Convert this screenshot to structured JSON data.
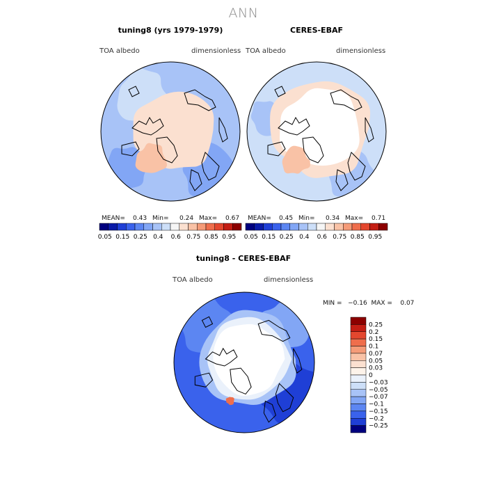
{
  "figure_title": "ANN",
  "panels": [
    {
      "title": "tuning8 (yrs 1979-1979)",
      "variable_label": "TOA albedo",
      "units_label": "dimensionless",
      "mean_label": "MEAN=",
      "mean": "0.43",
      "min_label": "Min=",
      "min": "0.24",
      "max_label": "Max=",
      "max": "0.67"
    },
    {
      "title": "CERES-EBAF",
      "variable_label": "TOA albedo",
      "units_label": "dimensionless",
      "mean_label": "MEAN=",
      "mean": "0.45",
      "min_label": "Min=",
      "min": "0.34",
      "max_label": "Max=",
      "max": "0.71"
    },
    {
      "title": "tuning8 - CERES-EBAF",
      "variable_label": "TOA albedo",
      "units_label": "dimensionless",
      "minmax_text": "MIN =   −0.16  MAX =    0.07"
    }
  ],
  "chart_data": [
    {
      "type": "heatmap",
      "projection": "north polar stereographic",
      "title": "tuning8 (yrs 1979-1979)",
      "colorbar_orientation": "horizontal",
      "colorbar_levels": [
        0.05,
        0.1,
        0.15,
        0.2,
        0.25,
        0.3,
        0.35,
        0.4,
        0.5,
        0.6,
        0.65,
        0.75,
        0.8,
        0.85,
        0.9,
        0.95
      ],
      "colorbar_tick_labels": [
        "0.05",
        "0.15",
        "0.25",
        "0.4",
        "0.6",
        "0.75",
        "0.85",
        "0.95"
      ],
      "colorbar_colors": [
        "#00007f",
        "#0a1aa8",
        "#1f3fd6",
        "#3a62ec",
        "#5c86f2",
        "#82a6f5",
        "#a8c3f7",
        "#cddff8",
        "#f5f5f5",
        "#fbe0d0",
        "#f9c2a6",
        "#f59b78",
        "#ef6e4c",
        "#e4472e",
        "#c41e14",
        "#8c0000"
      ],
      "mean": 0.43,
      "min": 0.24,
      "max": 0.67
    },
    {
      "type": "heatmap",
      "projection": "north polar stereographic",
      "title": "CERES-EBAF",
      "colorbar_orientation": "horizontal",
      "colorbar_levels": [
        0.05,
        0.1,
        0.15,
        0.2,
        0.25,
        0.3,
        0.35,
        0.4,
        0.5,
        0.6,
        0.65,
        0.75,
        0.8,
        0.85,
        0.9,
        0.95
      ],
      "colorbar_tick_labels": [
        "0.05",
        "0.15",
        "0.25",
        "0.4",
        "0.6",
        "0.75",
        "0.85",
        "0.95"
      ],
      "colorbar_colors": [
        "#00007f",
        "#0a1aa8",
        "#1f3fd6",
        "#3a62ec",
        "#5c86f2",
        "#82a6f5",
        "#a8c3f7",
        "#cddff8",
        "#f5f5f5",
        "#fbe0d0",
        "#f9c2a6",
        "#f59b78",
        "#ef6e4c",
        "#e4472e",
        "#c41e14",
        "#8c0000"
      ],
      "mean": 0.45,
      "min": 0.34,
      "max": 0.71
    },
    {
      "type": "heatmap",
      "projection": "north polar stereographic",
      "title": "tuning8 - CERES-EBAF",
      "colorbar_orientation": "vertical",
      "colorbar_tick_labels": [
        "0.25",
        "0.2",
        "0.15",
        "0.1",
        "0.07",
        "0.05",
        "0.03",
        "0",
        "−0.03",
        "−0.05",
        "−0.07",
        "−0.1",
        "−0.15",
        "−0.2",
        "−0.25"
      ],
      "colorbar_colors": [
        "#8c0000",
        "#c41e14",
        "#e4472e",
        "#ef6e4c",
        "#f59b78",
        "#f9c2a6",
        "#fbe0d0",
        "#fdf3ea",
        "#eaf1fb",
        "#cddff8",
        "#a8c3f7",
        "#82a6f5",
        "#5c86f2",
        "#3a62ec",
        "#1f3fd6",
        "#00007f"
      ],
      "min": -0.16,
      "max": 0.07
    }
  ]
}
